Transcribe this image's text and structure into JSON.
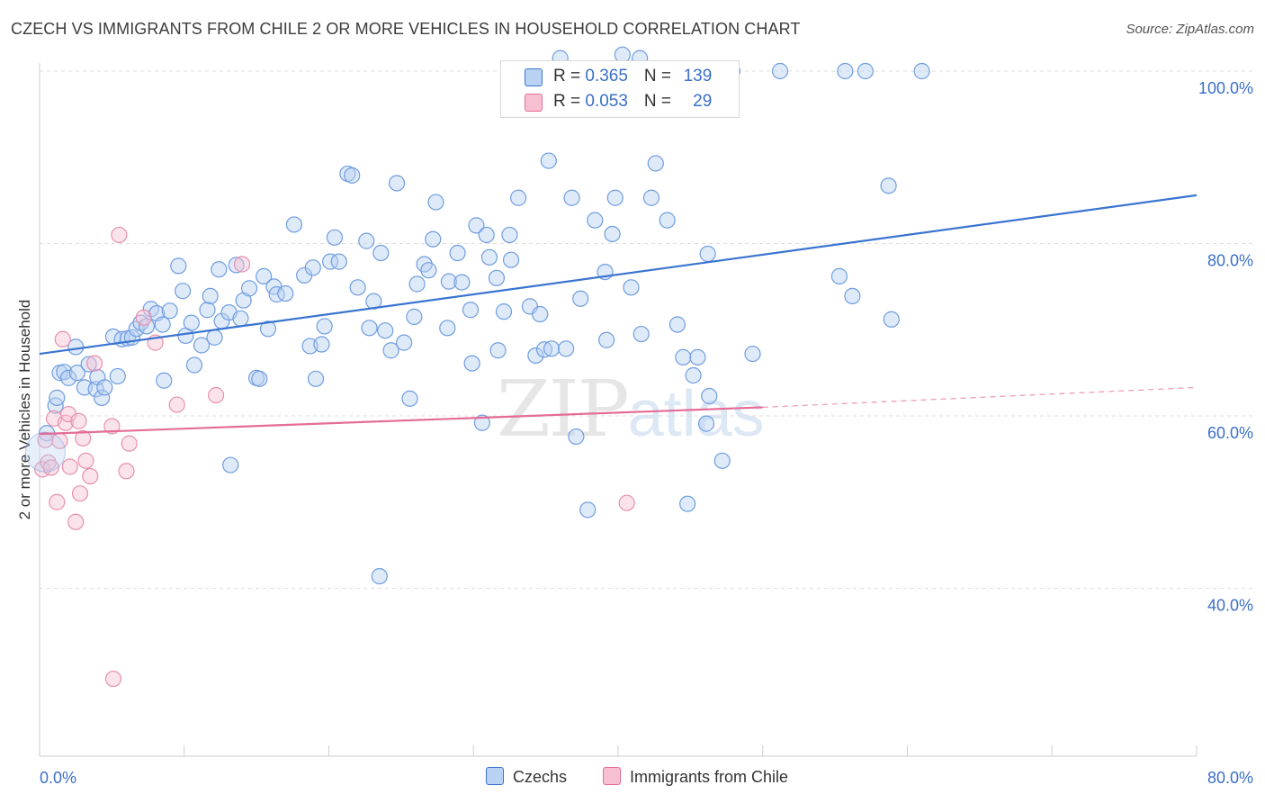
{
  "title": "CZECH VS IMMIGRANTS FROM CHILE 2 OR MORE VEHICLES IN HOUSEHOLD CORRELATION CHART",
  "source": "Source: ZipAtlas.com",
  "watermark": {
    "zip": "ZIP",
    "atlas": "atlas"
  },
  "colors": {
    "blue": "#3a74d0",
    "blue_fill": "#b9d1f2",
    "pink": "#e46c96",
    "pink_fill": "#f7c0d2",
    "axis_text": "#3a6fc7",
    "grid": "#dddddd"
  },
  "legend_top": [
    {
      "r_label": "R = ",
      "r_value": "0.365",
      "n_label": "N = ",
      "n_value": "139"
    },
    {
      "r_label": "R = ",
      "r_value": "0.053",
      "n_label": "N = ",
      "n_value": "29"
    }
  ],
  "chart_data": {
    "type": "scatter",
    "title": "CZECH VS IMMIGRANTS FROM CHILE 2 OR MORE VEHICLES IN HOUSEHOLD CORRELATION CHART",
    "xlabel": "",
    "ylabel": "2 or more Vehicles in Household",
    "xlim": [
      0,
      80
    ],
    "ylim": [
      20,
      102
    ],
    "x_tick_labels": [
      "0.0%",
      "80.0%"
    ],
    "y_ticks": [
      40,
      60,
      80,
      100
    ],
    "y_tick_labels": [
      "40.0%",
      "60.0%",
      "80.0%",
      "100.0%"
    ],
    "grid": true,
    "legend_position": "bottom-center",
    "series": [
      {
        "name": "Czechs",
        "color": "#3a74d0",
        "trend": {
          "x": [
            0,
            80
          ],
          "y": [
            67.2,
            85.6
          ],
          "style": "solid"
        },
        "points": [
          [
            0.5,
            58.0
          ],
          [
            1.1,
            61.2
          ],
          [
            1.2,
            62.1
          ],
          [
            1.4,
            65.0
          ],
          [
            1.7,
            65.1
          ],
          [
            2.0,
            64.4
          ],
          [
            2.5,
            68.0
          ],
          [
            2.6,
            65.0
          ],
          [
            3.1,
            63.3
          ],
          [
            3.4,
            66.0
          ],
          [
            3.9,
            63.1
          ],
          [
            4.0,
            64.5
          ],
          [
            4.3,
            62.1
          ],
          [
            4.5,
            63.3
          ],
          [
            5.1,
            69.2
          ],
          [
            5.4,
            64.6
          ],
          [
            5.7,
            68.9
          ],
          [
            6.1,
            69.0
          ],
          [
            6.4,
            69.1
          ],
          [
            6.7,
            70.1
          ],
          [
            7.0,
            70.8
          ],
          [
            7.4,
            70.4
          ],
          [
            7.7,
            72.4
          ],
          [
            8.1,
            71.9
          ],
          [
            8.5,
            70.6
          ],
          [
            8.6,
            64.1
          ],
          [
            9.0,
            72.2
          ],
          [
            9.6,
            77.4
          ],
          [
            9.9,
            74.5
          ],
          [
            10.1,
            69.3
          ],
          [
            10.5,
            70.8
          ],
          [
            10.7,
            65.9
          ],
          [
            11.2,
            68.2
          ],
          [
            11.6,
            72.3
          ],
          [
            11.8,
            73.9
          ],
          [
            12.1,
            69.1
          ],
          [
            12.4,
            77.0
          ],
          [
            12.6,
            71.0
          ],
          [
            13.1,
            72.0
          ],
          [
            13.2,
            54.3
          ],
          [
            13.6,
            77.5
          ],
          [
            13.9,
            71.3
          ],
          [
            14.1,
            73.4
          ],
          [
            14.5,
            74.8
          ],
          [
            15.0,
            64.4
          ],
          [
            15.2,
            64.3
          ],
          [
            15.5,
            76.2
          ],
          [
            15.8,
            70.1
          ],
          [
            16.2,
            75.0
          ],
          [
            16.4,
            74.1
          ],
          [
            17.0,
            74.2
          ],
          [
            17.6,
            82.2
          ],
          [
            18.3,
            76.3
          ],
          [
            18.7,
            68.1
          ],
          [
            18.9,
            77.2
          ],
          [
            19.1,
            64.3
          ],
          [
            19.5,
            68.3
          ],
          [
            19.7,
            70.4
          ],
          [
            20.1,
            77.9
          ],
          [
            20.4,
            80.7
          ],
          [
            20.7,
            77.9
          ],
          [
            21.3,
            88.1
          ],
          [
            21.6,
            87.9
          ],
          [
            22.0,
            74.9
          ],
          [
            22.6,
            80.3
          ],
          [
            22.8,
            70.2
          ],
          [
            23.1,
            73.3
          ],
          [
            23.6,
            78.9
          ],
          [
            23.9,
            69.9
          ],
          [
            24.3,
            67.6
          ],
          [
            24.7,
            87.0
          ],
          [
            25.2,
            68.5
          ],
          [
            25.9,
            71.5
          ],
          [
            26.1,
            75.3
          ],
          [
            26.6,
            77.6
          ],
          [
            26.9,
            76.9
          ],
          [
            27.2,
            80.5
          ],
          [
            27.4,
            84.8
          ],
          [
            28.2,
            70.2
          ],
          [
            28.3,
            75.6
          ],
          [
            28.9,
            78.9
          ],
          [
            29.2,
            75.5
          ],
          [
            29.9,
            66.1
          ],
          [
            29.8,
            72.3
          ],
          [
            30.2,
            82.1
          ],
          [
            30.6,
            59.2
          ],
          [
            30.9,
            81.0
          ],
          [
            31.1,
            78.4
          ],
          [
            31.6,
            76.0
          ],
          [
            31.7,
            67.6
          ],
          [
            32.1,
            72.1
          ],
          [
            32.5,
            81.0
          ],
          [
            32.6,
            78.1
          ],
          [
            33.1,
            85.3
          ],
          [
            33.9,
            72.7
          ],
          [
            34.3,
            67.0
          ],
          [
            34.6,
            71.8
          ],
          [
            34.9,
            67.7
          ],
          [
            35.2,
            89.6
          ],
          [
            35.4,
            67.8
          ],
          [
            36.4,
            67.8
          ],
          [
            36.8,
            85.3
          ],
          [
            37.1,
            57.6
          ],
          [
            37.4,
            73.6
          ],
          [
            37.9,
            49.1
          ],
          [
            38.4,
            82.7
          ],
          [
            39.1,
            76.7
          ],
          [
            39.2,
            68.8
          ],
          [
            39.6,
            81.1
          ],
          [
            39.8,
            85.3
          ],
          [
            40.3,
            101.9
          ],
          [
            40.9,
            74.9
          ],
          [
            41.6,
            69.5
          ],
          [
            42.3,
            85.3
          ],
          [
            42.6,
            89.3
          ],
          [
            43.4,
            82.7
          ],
          [
            44.1,
            70.6
          ],
          [
            44.5,
            66.8
          ],
          [
            44.8,
            49.8
          ],
          [
            45.2,
            64.7
          ],
          [
            45.5,
            66.8
          ],
          [
            46.1,
            59.1
          ],
          [
            46.2,
            78.8
          ],
          [
            46.3,
            62.3
          ],
          [
            47.2,
            54.8
          ],
          [
            47.9,
            100.0
          ],
          [
            49.3,
            67.2
          ],
          [
            51.2,
            100.0
          ],
          [
            55.7,
            100.0
          ],
          [
            55.3,
            76.2
          ],
          [
            56.2,
            73.9
          ],
          [
            57.1,
            100.0
          ],
          [
            58.7,
            86.7
          ],
          [
            58.9,
            71.2
          ],
          [
            61.0,
            100.0
          ],
          [
            36.0,
            101.5
          ],
          [
            41.5,
            101.5
          ],
          [
            23.5,
            41.4
          ],
          [
            25.6,
            62.0
          ]
        ]
      },
      {
        "name": "Immigrants from Chile",
        "color": "#e46c96",
        "trend": {
          "x": [
            0,
            50
          ],
          "y": [
            57.9,
            61.0
          ],
          "x_dashed_end": 80,
          "y_dashed_end": 63.3,
          "style": "solid-then-dashed"
        },
        "points": [
          [
            0.2,
            53.8
          ],
          [
            0.4,
            57.2
          ],
          [
            0.6,
            54.6
          ],
          [
            0.8,
            54.0
          ],
          [
            1.0,
            59.7
          ],
          [
            1.2,
            50.0
          ],
          [
            1.4,
            57.1
          ],
          [
            1.6,
            68.9
          ],
          [
            1.8,
            59.2
          ],
          [
            2.0,
            60.2
          ],
          [
            2.1,
            54.1
          ],
          [
            2.5,
            47.7
          ],
          [
            2.7,
            59.4
          ],
          [
            2.8,
            51.0
          ],
          [
            3.0,
            57.4
          ],
          [
            3.2,
            54.8
          ],
          [
            3.5,
            53.0
          ],
          [
            3.8,
            66.1
          ],
          [
            5.0,
            58.8
          ],
          [
            5.1,
            29.5
          ],
          [
            5.5,
            81.0
          ],
          [
            6.0,
            53.6
          ],
          [
            6.2,
            56.8
          ],
          [
            7.2,
            71.4
          ],
          [
            8.0,
            68.5
          ],
          [
            9.5,
            61.3
          ],
          [
            12.2,
            62.4
          ],
          [
            14.0,
            77.6
          ],
          [
            40.6,
            49.9
          ]
        ]
      }
    ]
  }
}
